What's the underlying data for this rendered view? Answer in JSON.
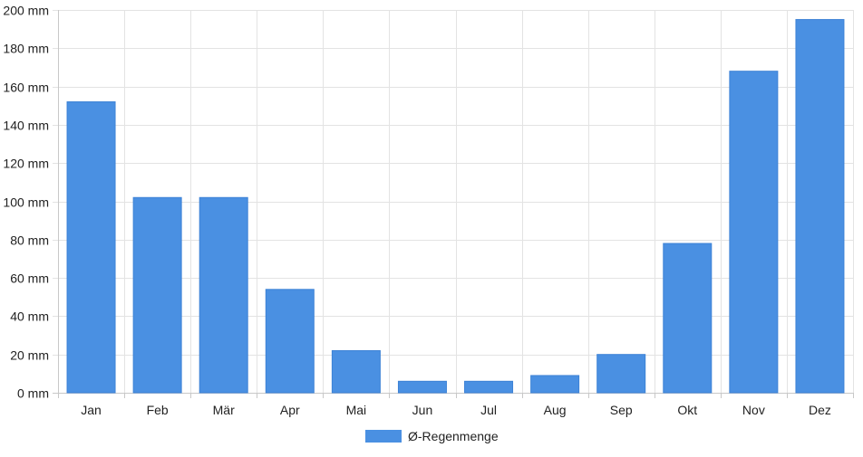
{
  "chart_data": {
    "type": "bar",
    "categories": [
      "Jan",
      "Feb",
      "Mär",
      "Apr",
      "Mai",
      "Jun",
      "Jul",
      "Aug",
      "Sep",
      "Okt",
      "Nov",
      "Dez"
    ],
    "series": [
      {
        "name": "Ø-Regenmenge",
        "values": [
          152,
          102,
          102,
          54,
          22,
          6,
          6,
          9,
          20,
          78,
          168,
          195
        ],
        "color": "#4a90e2"
      }
    ],
    "y_ticks": [
      "0 mm",
      "20 mm",
      "40 mm",
      "60 mm",
      "80 mm",
      "100 mm",
      "120 mm",
      "140 mm",
      "160 mm",
      "180 mm",
      "200 mm"
    ],
    "ylim": [
      0,
      200
    ],
    "y_tick_step": 20,
    "grid": true,
    "legend_position": "bottom-center"
  }
}
